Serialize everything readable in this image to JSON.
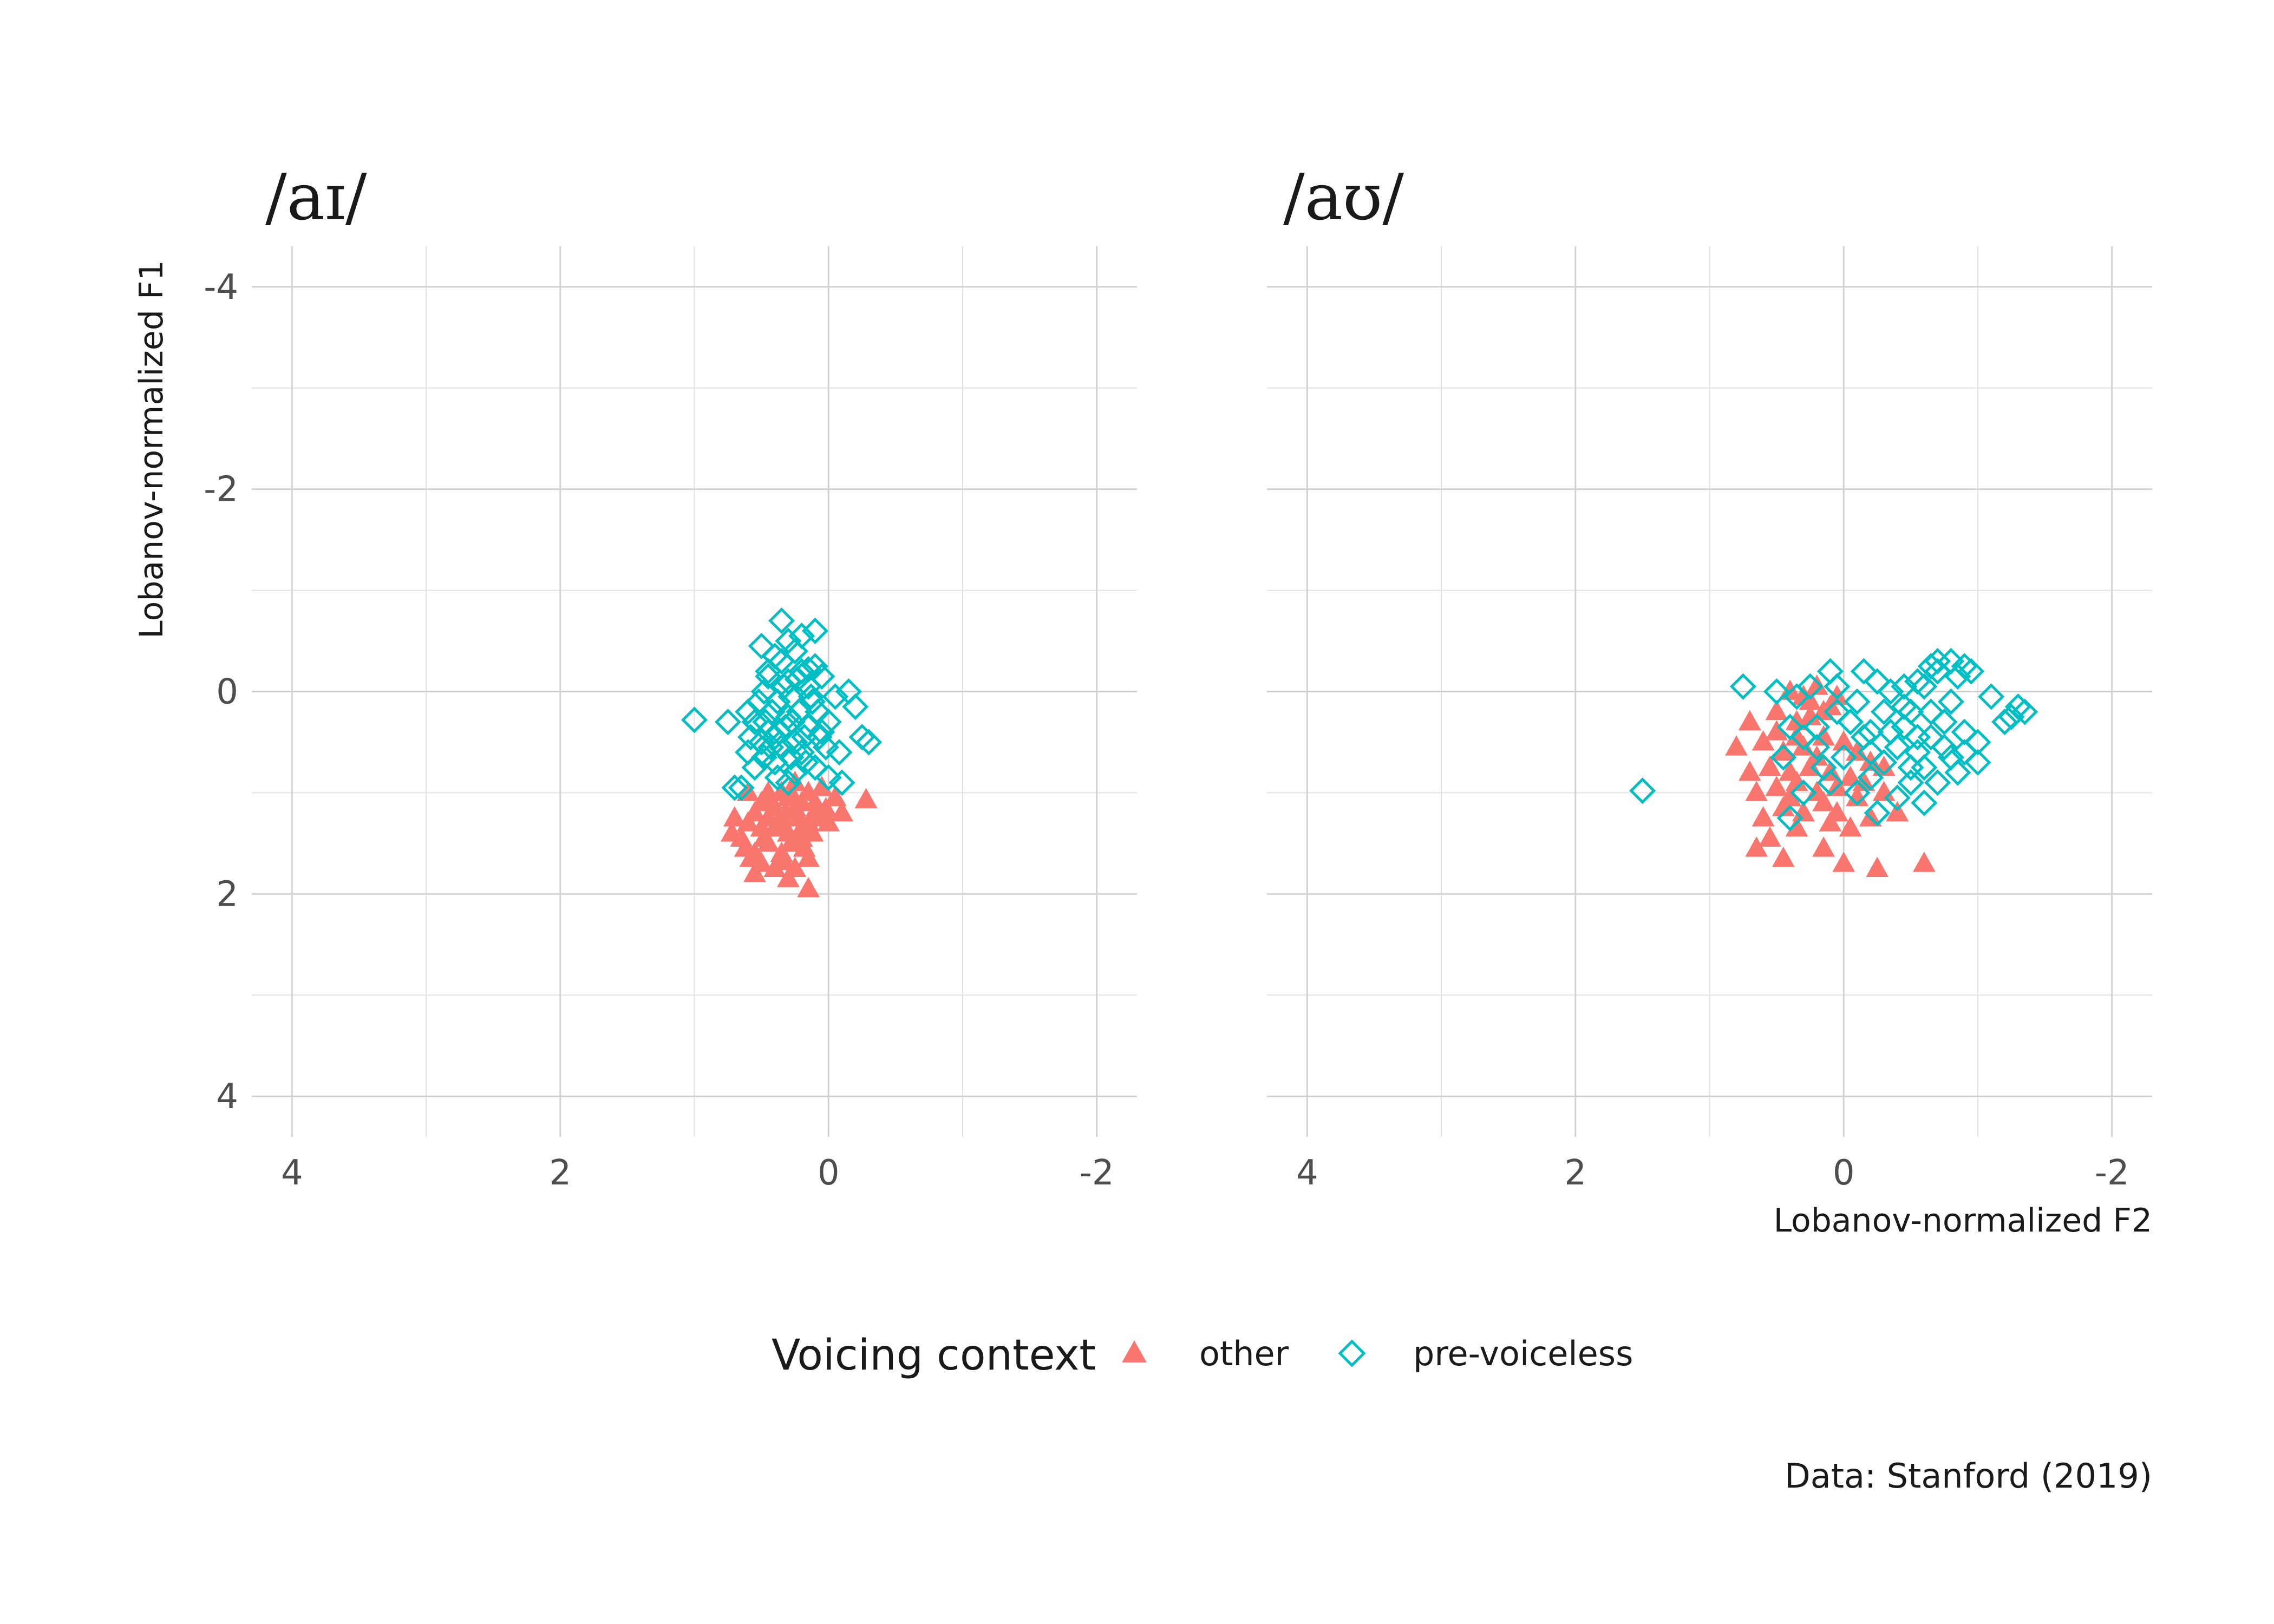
{
  "colors": {
    "other": "#F8766D",
    "pre_voiceless": "#00BFC4"
  },
  "legend": {
    "title": "Voicing context",
    "items": [
      "other",
      "pre-voiceless"
    ]
  },
  "caption": "Data: Stanford (2019)",
  "chart_data": [
    {
      "type": "scatter",
      "title": "/aɪ/",
      "xlabel": "",
      "ylabel": "Lobanov-normalized F1",
      "xlim": [
        4.3,
        -2.3
      ],
      "ylim": [
        -4.4,
        4.4
      ],
      "x_reversed": true,
      "y_reversed": true,
      "xticks": [
        4,
        2,
        0,
        -2
      ],
      "yticks": [
        -4,
        -2,
        0,
        2,
        4
      ],
      "grid": true,
      "series": [
        {
          "name": "other",
          "shape": "triangle",
          "points": [
            [
              0.3,
              1.05
            ],
            [
              0.2,
              1.1
            ],
            [
              0.45,
              1.0
            ],
            [
              0.1,
              1.2
            ],
            [
              0.35,
              1.25
            ],
            [
              0.5,
              1.1
            ],
            [
              0.15,
              1.3
            ],
            [
              0.4,
              1.35
            ],
            [
              0.25,
              1.15
            ],
            [
              0.55,
              1.2
            ],
            [
              0.05,
              1.25
            ],
            [
              0.3,
              1.4
            ],
            [
              0.6,
              1.3
            ],
            [
              0.2,
              1.45
            ],
            [
              0.45,
              1.5
            ],
            [
              0.65,
              1.45
            ],
            [
              0.1,
              1.1
            ],
            [
              0.35,
              1.6
            ],
            [
              0.15,
              1.65
            ],
            [
              0.25,
              1.75
            ],
            [
              0.5,
              1.7
            ],
            [
              0.55,
              1.8
            ],
            [
              0.4,
              1.75
            ],
            [
              0.15,
              1.95
            ],
            [
              0.3,
              1.85
            ],
            [
              -0.05,
              1.05
            ],
            [
              -0.1,
              1.2
            ],
            [
              0.0,
              1.3
            ],
            [
              0.7,
              1.25
            ],
            [
              0.05,
              0.95
            ],
            [
              0.25,
              0.9
            ],
            [
              0.6,
              1.0
            ],
            [
              0.35,
              1.0
            ],
            [
              0.4,
              1.15
            ],
            [
              0.5,
              1.35
            ],
            [
              0.2,
              1.35
            ],
            [
              0.28,
              1.5
            ],
            [
              0.12,
              1.4
            ],
            [
              0.45,
              1.25
            ],
            [
              0.08,
              1.15
            ],
            [
              0.32,
              1.2
            ],
            [
              0.22,
              1.25
            ],
            [
              0.62,
              1.55
            ],
            [
              0.18,
              1.55
            ],
            [
              0.55,
              1.6
            ],
            [
              0.38,
              1.3
            ],
            [
              0.48,
              1.45
            ],
            [
              0.26,
              1.05
            ],
            [
              0.15,
              1.0
            ],
            [
              0.42,
              1.1
            ],
            [
              -0.28,
              1.07
            ],
            [
              0.58,
              1.65
            ],
            [
              0.72,
              1.4
            ],
            [
              0.33,
              1.68
            ],
            [
              0.02,
              1.16
            ]
          ]
        },
        {
          "name": "pre-voiceless",
          "shape": "diamond",
          "points": [
            [
              0.2,
              -0.2
            ],
            [
              0.3,
              -0.1
            ],
            [
              0.35,
              -0.3
            ],
            [
              0.1,
              -0.25
            ],
            [
              0.25,
              -0.4
            ],
            [
              0.4,
              -0.35
            ],
            [
              0.15,
              -0.05
            ],
            [
              0.05,
              -0.15
            ],
            [
              0.45,
              -0.2
            ],
            [
              0.3,
              -0.5
            ],
            [
              0.2,
              -0.55
            ],
            [
              0.5,
              -0.45
            ],
            [
              0.1,
              -0.6
            ],
            [
              0.35,
              -0.7
            ],
            [
              0.25,
              0.5
            ],
            [
              0.4,
              0.45
            ],
            [
              0.55,
              0.3
            ],
            [
              0.05,
              0.4
            ],
            [
              0.15,
              0.35
            ],
            [
              0.3,
              0.25
            ],
            [
              0.45,
              0.4
            ],
            [
              0.2,
              0.6
            ],
            [
              0.35,
              0.55
            ],
            [
              0.5,
              0.5
            ],
            [
              0.6,
              0.6
            ],
            [
              0.1,
              0.75
            ],
            [
              0.25,
              0.8
            ],
            [
              0.4,
              0.7
            ],
            [
              0.55,
              0.75
            ],
            [
              0.3,
              0.9
            ],
            [
              -0.1,
              0.9
            ],
            [
              0.0,
              0.85
            ],
            [
              0.65,
              0.95
            ],
            [
              0.75,
              0.3
            ],
            [
              1.0,
              0.28
            ],
            [
              0.7,
              0.95
            ],
            [
              0.45,
              -0.15
            ],
            [
              0.15,
              -0.22
            ],
            [
              -0.05,
              0.05
            ],
            [
              0.0,
              0.3
            ],
            [
              -0.15,
              0.0
            ],
            [
              -0.2,
              0.15
            ],
            [
              -0.25,
              0.45
            ],
            [
              -0.3,
              0.5
            ],
            [
              0.12,
              0.1
            ],
            [
              0.28,
              0.05
            ],
            [
              0.38,
              0.1
            ],
            [
              0.48,
              0.0
            ],
            [
              0.22,
              0.2
            ],
            [
              0.32,
              0.35
            ],
            [
              0.42,
              0.2
            ],
            [
              0.08,
              0.2
            ],
            [
              0.18,
              0.45
            ],
            [
              0.28,
              0.65
            ],
            [
              0.38,
              0.85
            ],
            [
              0.48,
              0.65
            ],
            [
              0.58,
              0.45
            ],
            [
              0.02,
              0.55
            ],
            [
              -0.08,
              0.6
            ],
            [
              0.6,
              0.2
            ],
            [
              0.52,
              0.1
            ],
            [
              0.33,
              -0.05
            ],
            [
              0.23,
              -0.12
            ],
            [
              0.13,
              0.05
            ],
            [
              0.43,
              0.55
            ],
            [
              0.27,
              0.3
            ],
            [
              0.37,
              0.4
            ],
            [
              0.17,
              0.7
            ],
            [
              0.07,
              0.45
            ],
            [
              0.47,
              0.3
            ]
          ]
        }
      ]
    },
    {
      "type": "scatter",
      "title": "/aʊ/",
      "xlabel": "Lobanov-normalized F2",
      "ylabel": "",
      "xlim": [
        4.3,
        -2.3
      ],
      "ylim": [
        -4.4,
        4.4
      ],
      "x_reversed": true,
      "y_reversed": true,
      "xticks": [
        4,
        2,
        0,
        -2
      ],
      "yticks": [
        -4,
        -2,
        0,
        2,
        4
      ],
      "grid": true,
      "series": [
        {
          "name": "other",
          "shape": "triangle",
          "points": [
            [
              0.2,
              -0.05
            ],
            [
              0.4,
              0.0
            ],
            [
              0.25,
              0.1
            ],
            [
              0.1,
              0.15
            ],
            [
              0.35,
              0.3
            ],
            [
              0.5,
              0.4
            ],
            [
              0.45,
              0.6
            ],
            [
              0.6,
              0.5
            ],
            [
              0.3,
              0.55
            ],
            [
              0.15,
              0.45
            ],
            [
              0.0,
              0.5
            ],
            [
              -0.1,
              0.6
            ],
            [
              -0.2,
              0.7
            ],
            [
              -0.3,
              0.75
            ],
            [
              -0.15,
              0.9
            ],
            [
              0.05,
              0.95
            ],
            [
              0.2,
              1.0
            ],
            [
              0.35,
              0.9
            ],
            [
              0.5,
              0.95
            ],
            [
              0.65,
              1.0
            ],
            [
              0.55,
              0.75
            ],
            [
              0.7,
              0.8
            ],
            [
              0.1,
              0.8
            ],
            [
              -0.05,
              0.85
            ],
            [
              0.25,
              0.75
            ],
            [
              0.4,
              0.8
            ],
            [
              0.15,
              1.1
            ],
            [
              0.3,
              1.2
            ],
            [
              0.45,
              1.15
            ],
            [
              0.6,
              1.25
            ],
            [
              -0.1,
              1.05
            ],
            [
              0.05,
              1.2
            ],
            [
              0.35,
              1.35
            ],
            [
              0.1,
              1.3
            ],
            [
              0.55,
              1.45
            ],
            [
              0.15,
              1.55
            ],
            [
              0.45,
              1.65
            ],
            [
              0.0,
              1.7
            ],
            [
              -0.25,
              1.75
            ],
            [
              -0.6,
              1.7
            ],
            [
              0.65,
              1.55
            ],
            [
              0.7,
              0.3
            ],
            [
              0.8,
              0.55
            ],
            [
              0.2,
              0.65
            ],
            [
              -0.05,
              1.35
            ],
            [
              -0.4,
              1.2
            ],
            [
              0.25,
              0.25
            ],
            [
              0.05,
              0.05
            ],
            [
              0.15,
              0.2
            ],
            [
              0.3,
              0.05
            ],
            [
              0.35,
              0.45
            ],
            [
              0.5,
              0.2
            ],
            [
              0.4,
              1.05
            ],
            [
              -0.2,
              1.25
            ],
            [
              -0.3,
              1.0
            ]
          ]
        },
        {
          "name": "pre-voiceless",
          "shape": "diamond",
          "points": [
            [
              0.5,
              0.0
            ],
            [
              0.75,
              -0.05
            ],
            [
              -0.7,
              -0.2
            ],
            [
              -0.9,
              -0.25
            ],
            [
              -0.6,
              -0.05
            ],
            [
              -0.8,
              0.1
            ],
            [
              -0.5,
              0.2
            ],
            [
              -0.75,
              0.3
            ],
            [
              -0.65,
              0.45
            ],
            [
              -0.9,
              0.4
            ],
            [
              -0.55,
              0.6
            ],
            [
              -0.8,
              0.65
            ],
            [
              -0.6,
              0.75
            ],
            [
              -0.4,
              0.55
            ],
            [
              -0.45,
              0.35
            ],
            [
              -0.3,
              0.2
            ],
            [
              -0.2,
              0.4
            ],
            [
              -1.0,
              0.5
            ],
            [
              -0.85,
              0.8
            ],
            [
              -0.7,
              0.9
            ],
            [
              -1.3,
              0.15
            ],
            [
              -1.35,
              0.2
            ],
            [
              -1.1,
              0.05
            ],
            [
              -1.2,
              0.3
            ],
            [
              -0.95,
              -0.2
            ],
            [
              -1.0,
              0.7
            ],
            [
              -0.3,
              0.7
            ],
            [
              -0.2,
              0.85
            ],
            [
              -0.1,
              1.0
            ],
            [
              0.0,
              0.65
            ],
            [
              0.1,
              0.9
            ],
            [
              -0.5,
              0.9
            ],
            [
              -0.4,
              1.05
            ],
            [
              -0.6,
              1.1
            ],
            [
              -0.25,
              -0.1
            ],
            [
              -0.1,
              0.1
            ],
            [
              -0.15,
              -0.2
            ],
            [
              -0.05,
              0.3
            ],
            [
              0.05,
              0.2
            ],
            [
              -0.7,
              -0.3
            ],
            [
              -0.85,
              -0.15
            ],
            [
              -0.65,
              -0.25
            ],
            [
              0.05,
              -0.05
            ],
            [
              0.1,
              -0.2
            ],
            [
              0.35,
              0.05
            ],
            [
              0.25,
              -0.05
            ],
            [
              0.4,
              0.35
            ],
            [
              0.3,
              0.45
            ],
            [
              0.2,
              0.55
            ],
            [
              0.45,
              0.65
            ],
            [
              -0.2,
              0.6
            ],
            [
              -0.35,
              0.4
            ],
            [
              -0.45,
              0.15
            ],
            [
              -0.55,
              0.45
            ],
            [
              -0.75,
              0.55
            ],
            [
              -0.9,
              0.6
            ],
            [
              1.5,
              0.98
            ],
            [
              -0.8,
              -0.3
            ],
            [
              -0.55,
              -0.1
            ],
            [
              0.15,
              0.75
            ],
            [
              0.3,
              1.0
            ],
            [
              -0.15,
              0.45
            ],
            [
              -0.25,
              1.2
            ],
            [
              -1.25,
              0.25
            ],
            [
              -0.35,
              0.0
            ],
            [
              -0.45,
              -0.05
            ],
            [
              -0.65,
              0.2
            ],
            [
              -0.5,
              0.75
            ],
            [
              0.4,
              1.25
            ],
            [
              0.2,
              0.35
            ]
          ]
        }
      ]
    }
  ]
}
